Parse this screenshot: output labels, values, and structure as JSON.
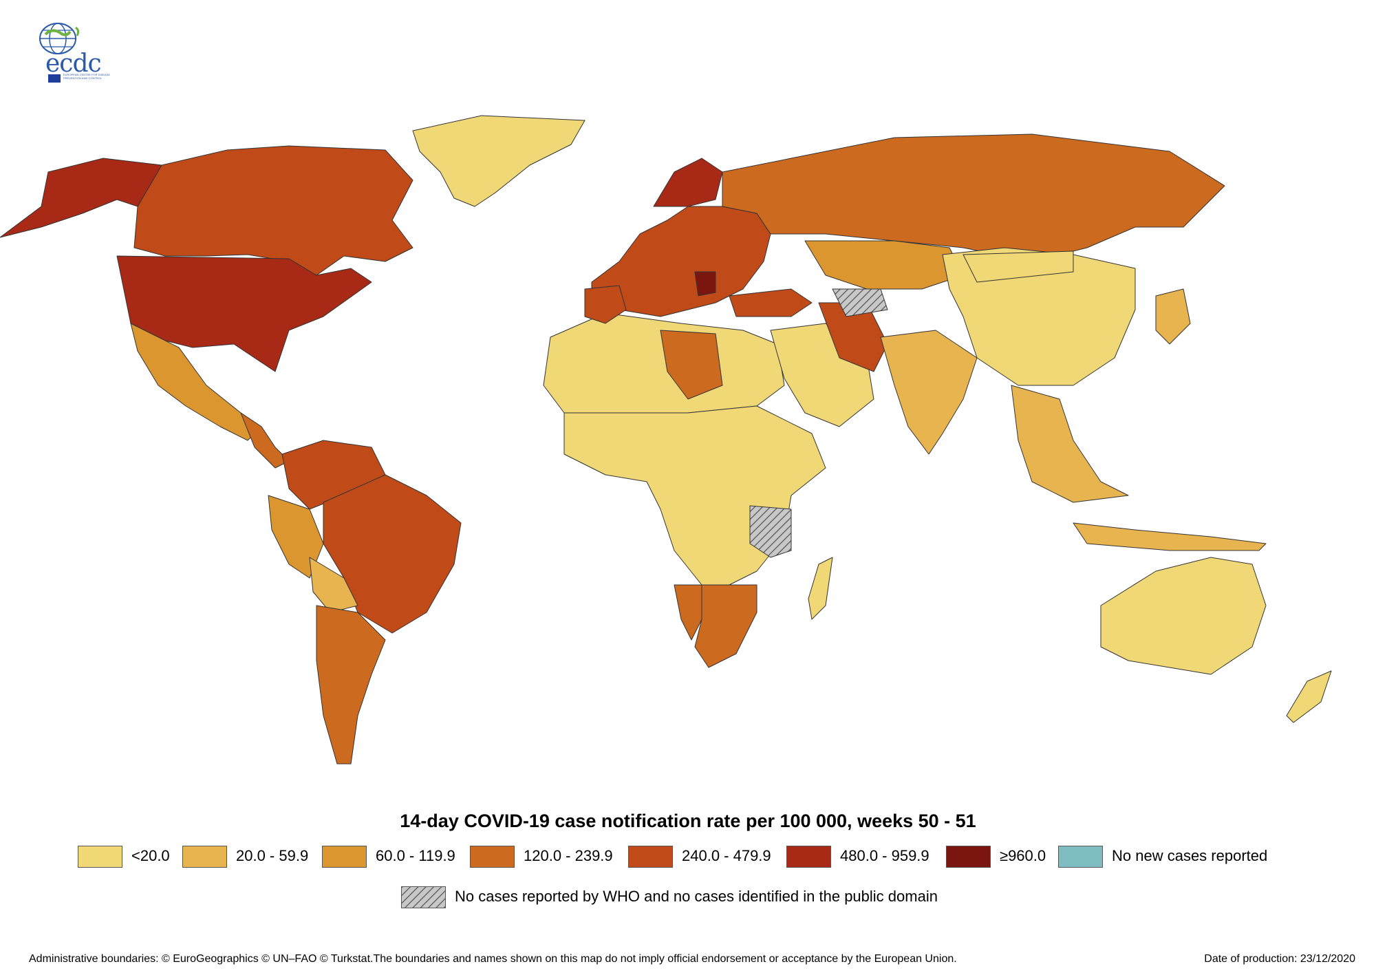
{
  "logo": {
    "text": "ecdc",
    "caption": "EUROPEAN CENTRE FOR DISEASE PREVENTION AND CONTROL"
  },
  "map": {
    "title": "14-day COVID-19 case notification rate per 100 000, weeks  50 - 51",
    "legend": [
      {
        "label": "<20.0",
        "color": "#f0d877"
      },
      {
        "label": "20.0 - 59.9",
        "color": "#e8b450"
      },
      {
        "label": "60.0 - 119.9",
        "color": "#dc9630"
      },
      {
        "label": "120.0 - 239.9",
        "color": "#cc6a20"
      },
      {
        "label": "240.0 - 479.9",
        "color": "#c04a18"
      },
      {
        "label": "480.0 - 959.9",
        "color": "#a82a16"
      },
      {
        "label": "≥960.0",
        "color": "#7a1510"
      },
      {
        "label": "No new cases reported",
        "color": "#7fbdc2"
      }
    ],
    "no_data_label": "No cases reported by WHO and no cases identified in the public domain",
    "no_data_color": "#a8a8a8"
  },
  "footer": {
    "credit": "Administrative boundaries: © EuroGeographics © UN–FAO © Turkstat.The boundaries and names shown on this map do not imply official endorsement or acceptance by the European Union.",
    "date": "Date of production: 23/12/2020"
  }
}
